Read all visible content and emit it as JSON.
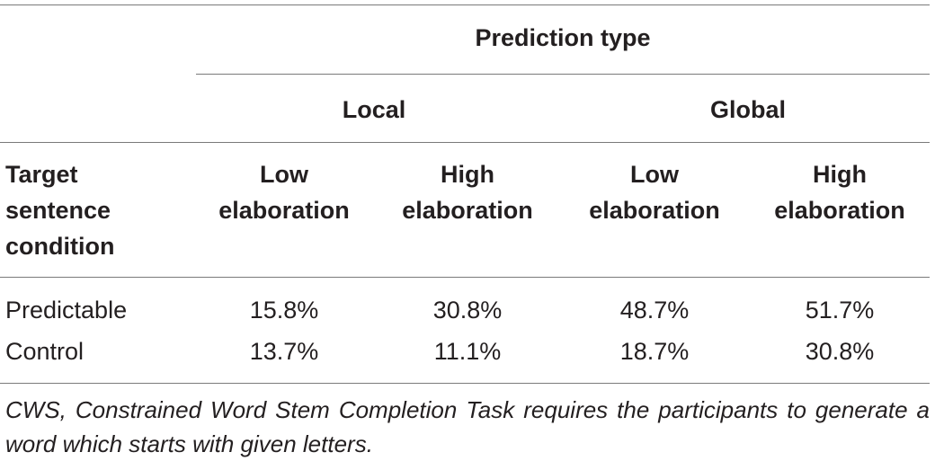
{
  "table": {
    "group_header": "Prediction type",
    "subgroups": [
      "Local",
      "Global"
    ],
    "row_header": [
      "Target",
      "sentence",
      "condition"
    ],
    "columns": [
      [
        "Low",
        "elaboration"
      ],
      [
        "High",
        "elaboration"
      ],
      [
        "Low",
        "elaboration"
      ],
      [
        "High",
        "elaboration"
      ]
    ],
    "rows": [
      {
        "label": "Predictable",
        "values": [
          "15.8%",
          "30.8%",
          "48.7%",
          "51.7%"
        ]
      },
      {
        "label": "Control",
        "values": [
          "13.7%",
          "11.1%",
          "18.7%",
          "30.8%"
        ]
      }
    ]
  },
  "footnote": "CWS, Constrained Word Stem Completion Task requires the participants to generate a word which starts with given letters."
}
